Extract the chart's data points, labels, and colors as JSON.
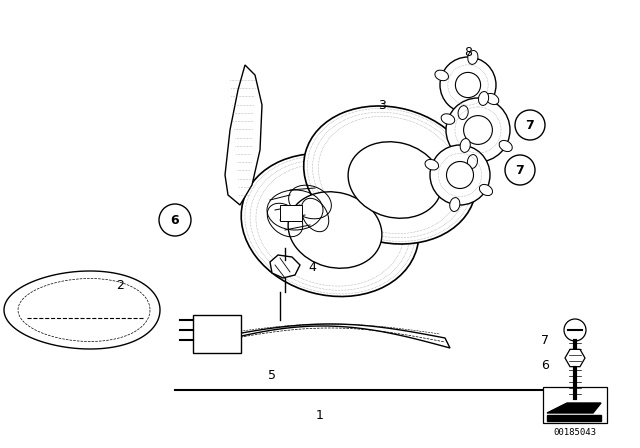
{
  "bg_color": "#ffffff",
  "fig_width": 6.4,
  "fig_height": 4.48,
  "dpi": 100,
  "part_id": "00185043",
  "line_color": "#000000",
  "gray_color": "#888888"
}
